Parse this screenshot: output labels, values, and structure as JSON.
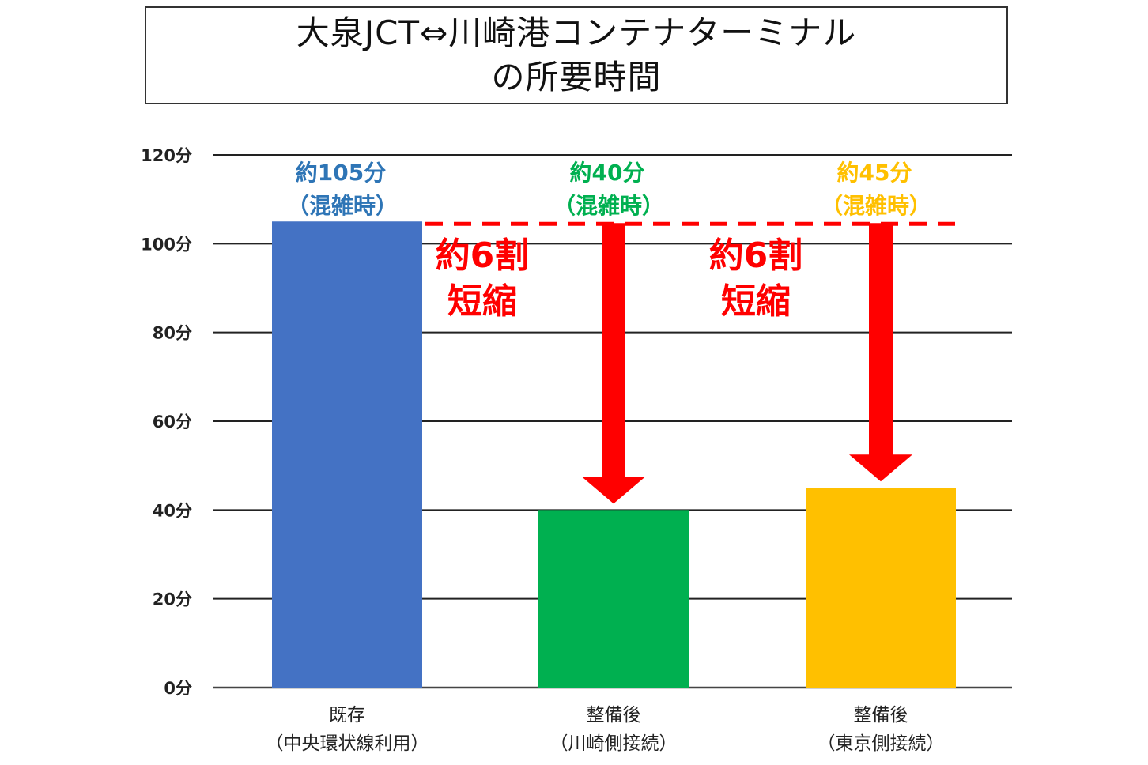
{
  "chart_data": {
    "type": "bar",
    "title": [
      "大泉JCT⇔川崎港コンテナターミナル",
      "の所要時間"
    ],
    "categories": [
      [
        "既存",
        "（中央環状線利用）"
      ],
      [
        "整備後",
        "（川崎側接続）"
      ],
      [
        "整備後",
        "（東京側接続）"
      ]
    ],
    "values": [
      105,
      40,
      45
    ],
    "unit": "分",
    "ylim": [
      0,
      120
    ],
    "yticks": [
      "0分",
      "20分",
      "40分",
      "60分",
      "80分",
      "100分",
      "120分"
    ],
    "grid": true,
    "bar_colors": [
      "#4472c4",
      "#00b050",
      "#ffc000"
    ],
    "data_labels": [
      [
        "約105分",
        "（混雑時）"
      ],
      [
        "約40分",
        "（混雑時）"
      ],
      [
        "約45分",
        "（混雑時）"
      ]
    ],
    "label_colors": [
      "#2e75b6",
      "#00b050",
      "#ffc000"
    ],
    "reference_line": {
      "value": 105,
      "style": "dashed",
      "color": "#ff0000"
    },
    "annotations": [
      {
        "lines": [
          "約6割",
          "短縮"
        ],
        "color": "#ff0000"
      },
      {
        "lines": [
          "約6割",
          "短縮"
        ],
        "color": "#ff0000"
      }
    ],
    "arrows": [
      {
        "from": 105,
        "to": 40,
        "color": "#ff0000"
      },
      {
        "from": 105,
        "to": 45,
        "color": "#ff0000"
      }
    ]
  }
}
